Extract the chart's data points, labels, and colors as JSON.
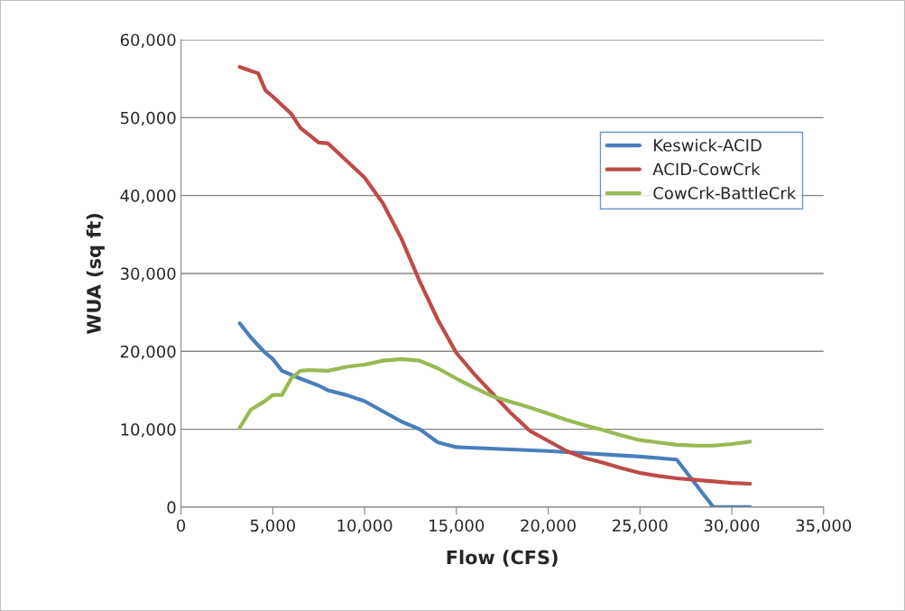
{
  "chart_data": {
    "type": "line",
    "xlabel": "Flow (CFS)",
    "ylabel": "WUA (sq ft)",
    "xlim": [
      0,
      35000
    ],
    "xticks": [
      {
        "value": 0,
        "label": "0"
      },
      {
        "value": 5000,
        "label": "5,000"
      },
      {
        "value": 10000,
        "label": "10,000"
      },
      {
        "value": 15000,
        "label": "15,000"
      },
      {
        "value": 20000,
        "label": "20,000"
      },
      {
        "value": 25000,
        "label": "25,000"
      },
      {
        "value": 30000,
        "label": "30,000"
      },
      {
        "value": 35000,
        "label": "35,000"
      }
    ],
    "ylim": [
      0,
      60000
    ],
    "yticks": [
      {
        "value": 0,
        "label": "0"
      },
      {
        "value": 10000,
        "label": "10,000"
      },
      {
        "value": 20000,
        "label": "20,000"
      },
      {
        "value": 30000,
        "label": "30,000"
      },
      {
        "value": 40000,
        "label": "40,000"
      },
      {
        "value": 50000,
        "label": "50,000"
      },
      {
        "value": 60000,
        "label": "60,000"
      }
    ],
    "grid": "y",
    "legend": "right",
    "marker": "none",
    "line_style": "solid",
    "series": [
      {
        "name": "Keswick-ACID",
        "color": "#4a7ebb",
        "x": [
          3200,
          3800,
          4500,
          5000,
          5500,
          6500,
          7500,
          8000,
          9000,
          10000,
          11000,
          12000,
          13000,
          14000,
          15000,
          20000,
          25000,
          27000,
          29000,
          31000
        ],
        "values": [
          23600,
          21800,
          20000,
          19000,
          17500,
          16500,
          15600,
          15000,
          14400,
          13600,
          12300,
          11000,
          10000,
          8300,
          7700,
          7200,
          6500,
          6100,
          0,
          0
        ]
      },
      {
        "name": "ACID-CowCrk",
        "color": "#be4b48",
        "x": [
          3200,
          3800,
          4200,
          4600,
          5000,
          6000,
          6500,
          7500,
          8000,
          9000,
          10000,
          11000,
          12000,
          13000,
          14000,
          15000,
          16000,
          17000,
          18000,
          19000,
          20000,
          21000,
          22000,
          23000,
          24000,
          25000,
          26000,
          27000,
          28000,
          29000,
          30000,
          31000
        ],
        "values": [
          56500,
          56000,
          55700,
          53500,
          52700,
          50500,
          48700,
          46800,
          46700,
          44500,
          42300,
          39000,
          34500,
          29000,
          24000,
          19800,
          17000,
          14500,
          12000,
          9800,
          8500,
          7200,
          6300,
          5700,
          5000,
          4400,
          4000,
          3700,
          3500,
          3300,
          3100,
          3000
        ]
      },
      {
        "name": "CowCrk-BattleCrk",
        "color": "#98b954",
        "x": [
          3200,
          3800,
          4500,
          5000,
          5500,
          6000,
          6500,
          7000,
          8000,
          9000,
          10000,
          11000,
          12000,
          13000,
          14000,
          15000,
          16000,
          17000,
          18000,
          19000,
          20000,
          21000,
          22000,
          23000,
          24000,
          25000,
          26000,
          27000,
          28000,
          29000,
          30000,
          31000
        ],
        "values": [
          10200,
          12500,
          13500,
          14400,
          14400,
          16500,
          17500,
          17600,
          17500,
          18000,
          18300,
          18800,
          19000,
          18800,
          17800,
          16500,
          15300,
          14200,
          13500,
          12800,
          12000,
          11200,
          10500,
          9900,
          9200,
          8600,
          8300,
          8000,
          7900,
          7900,
          8100,
          8400
        ]
      }
    ]
  }
}
